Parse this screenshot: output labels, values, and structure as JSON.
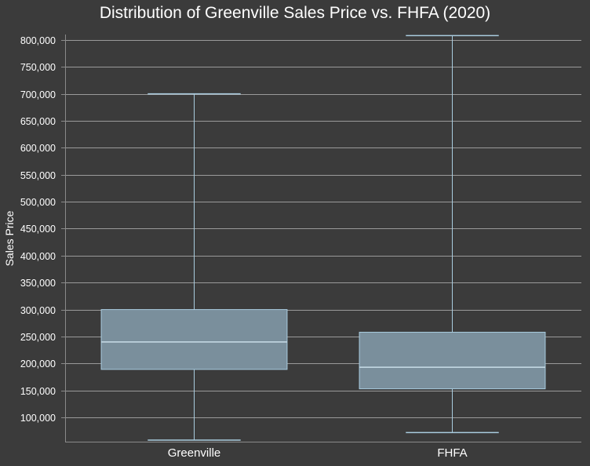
{
  "chart_data": {
    "type": "box",
    "title": "Distribution of Greenville Sales Price vs. FHFA (2020)",
    "xlabel": "",
    "ylabel": "Sales Price",
    "ylim": [
      55000,
      810000
    ],
    "yticks": [
      100000,
      150000,
      200000,
      250000,
      300000,
      350000,
      400000,
      450000,
      500000,
      550000,
      600000,
      650000,
      700000,
      750000,
      800000
    ],
    "ytick_labels": [
      "100,000",
      "150,000",
      "200,000",
      "250,000",
      "300,000",
      "350,000",
      "400,000",
      "450,000",
      "500,000",
      "550,000",
      "600,000",
      "650,000",
      "700,000",
      "750,000",
      "800,000"
    ],
    "categories": [
      "Greenville",
      "FHFA"
    ],
    "boxes": [
      {
        "category": "Greenville",
        "min": 58000,
        "q1": 189000,
        "median": 240000,
        "q3": 300000,
        "max": 700000
      },
      {
        "category": "FHFA",
        "min": 72000,
        "q1": 153000,
        "median": 193000,
        "q3": 258000,
        "max": 808000
      }
    ],
    "grid": true,
    "legend": "none",
    "colors": {
      "background": "#3b3b3b",
      "grid": "#9a9a9a",
      "axis": "#8a8a8a",
      "box_fill": "#7a8f9c",
      "box_stroke": "#a9ccdf",
      "median": "#c9dde8",
      "whisker": "#a9ccdf",
      "text": "#ffffff"
    }
  }
}
